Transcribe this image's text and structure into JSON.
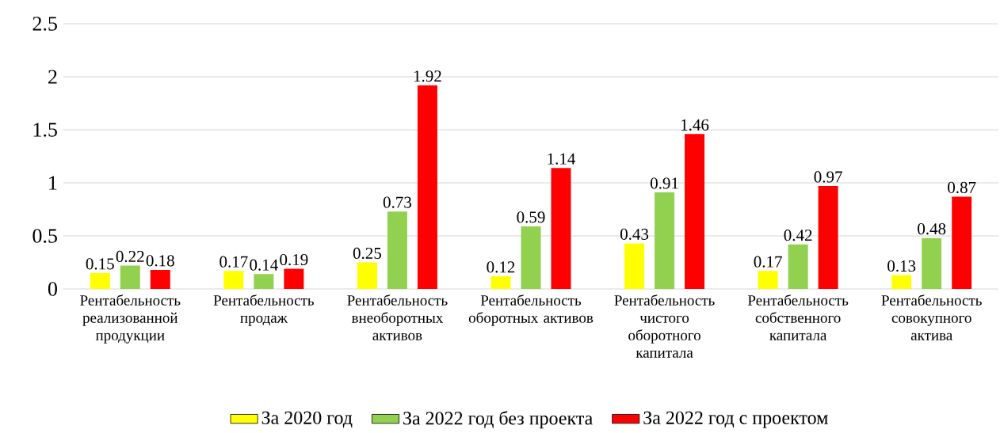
{
  "chart_data": {
    "type": "bar",
    "categories": [
      "Рентабельность реализованной продукции",
      "Рентабельность продаж",
      "Рентабельность внеоборотных активов",
      "Рентабельность оборотных активов",
      "Рентабельность чистого оборотного капитала",
      "Рентабельность собственного капитала",
      "Рентабельность совокупного актива"
    ],
    "series": [
      {
        "name": "За 2020 год",
        "color": "#ffff00",
        "values": [
          0.15,
          0.17,
          0.25,
          0.12,
          0.43,
          0.17,
          0.13
        ]
      },
      {
        "name": "За 2022 год без проекта",
        "color": "#92d050",
        "values": [
          0.22,
          0.14,
          0.73,
          0.59,
          0.91,
          0.42,
          0.48
        ]
      },
      {
        "name": "За 2022 год с проектом",
        "color": "#ff0000",
        "values": [
          0.18,
          0.19,
          1.92,
          1.14,
          1.46,
          0.97,
          0.87
        ]
      }
    ],
    "ylim": [
      0,
      2.5
    ],
    "yticks": [
      0,
      0.5,
      1,
      1.5,
      2,
      2.5
    ],
    "grid": "y",
    "legend": "bottom",
    "data_labels": true
  }
}
